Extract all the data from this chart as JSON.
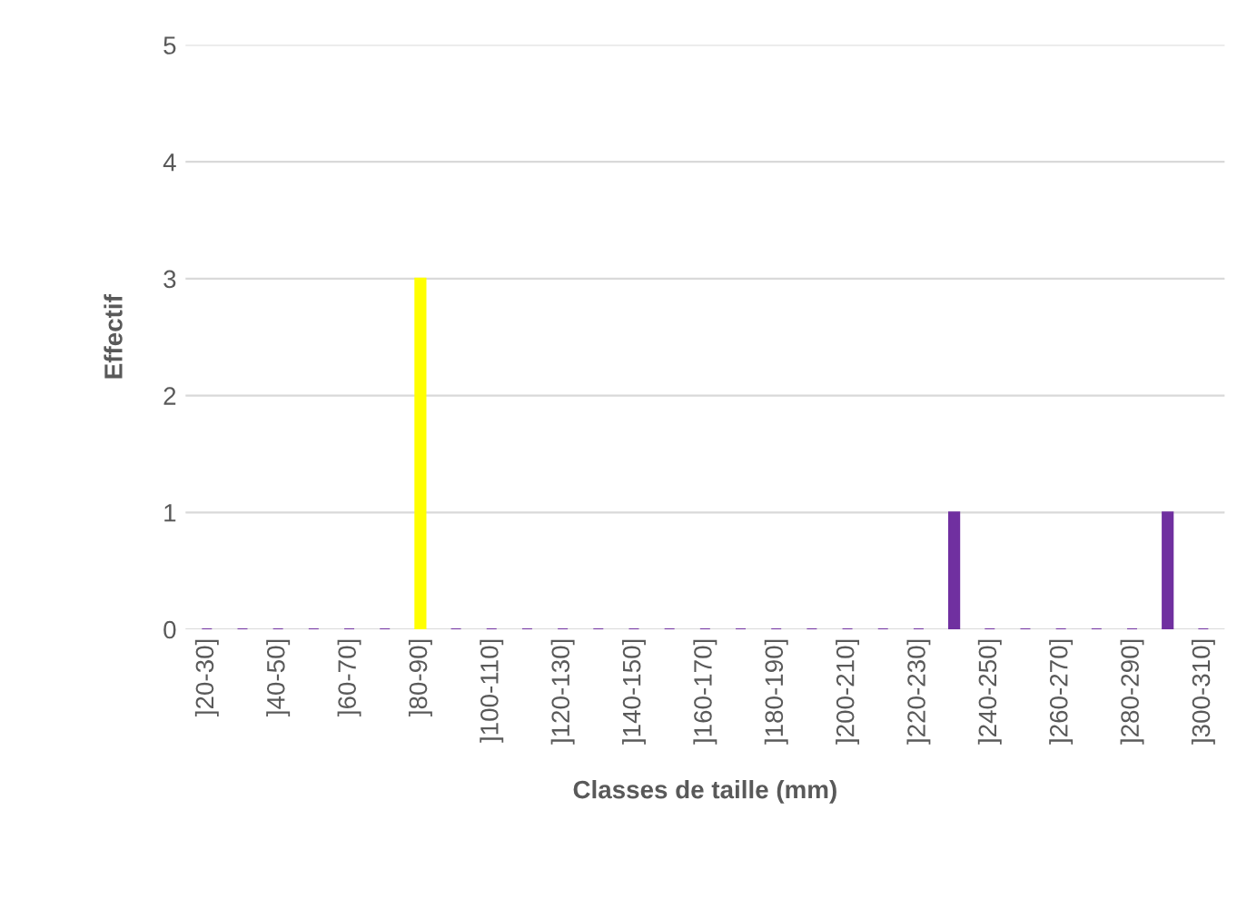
{
  "chart_data": {
    "type": "bar",
    "xlabel": "Classes de taille (mm)",
    "ylabel": "Effectif",
    "categories": [
      "]20-30]",
      null,
      "]40-50]",
      null,
      "]60-70]",
      null,
      "]80-90]",
      null,
      "]100-110]",
      null,
      "]120-130]",
      null,
      "]140-150]",
      null,
      "]160-170]",
      null,
      "]180-190]",
      null,
      "]200-210]",
      null,
      "]220-230]",
      null,
      "]240-250]",
      null,
      "]260-270]",
      null,
      "]280-290]",
      null,
      "]300-310]"
    ],
    "values": [
      0,
      0,
      0,
      0,
      0,
      0,
      3,
      0,
      0,
      0,
      0,
      0,
      0,
      0,
      0,
      0,
      0,
      0,
      0,
      0,
      0,
      1,
      0,
      0,
      0,
      0,
      0,
      1,
      0
    ],
    "colors": [
      "#7030a0",
      "#7030a0",
      "#7030a0",
      "#7030a0",
      "#7030a0",
      "#7030a0",
      "#ffff00",
      "#7030a0",
      "#7030a0",
      "#7030a0",
      "#7030a0",
      "#7030a0",
      "#7030a0",
      "#7030a0",
      "#7030a0",
      "#7030a0",
      "#7030a0",
      "#7030a0",
      "#7030a0",
      "#7030a0",
      "#7030a0",
      "#7030a0",
      "#7030a0",
      "#7030a0",
      "#7030a0",
      "#7030a0",
      "#7030a0",
      "#7030a0",
      "#7030a0"
    ],
    "ylim": [
      0,
      5
    ],
    "yticks": [
      0,
      1,
      2,
      3,
      4,
      5
    ],
    "grid": "y"
  }
}
